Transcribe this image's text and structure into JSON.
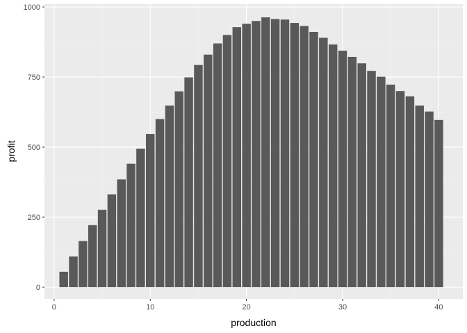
{
  "chart_data": {
    "type": "bar",
    "xlabel": "production",
    "ylabel": "profit",
    "x": [
      1,
      2,
      3,
      4,
      5,
      6,
      7,
      8,
      9,
      10,
      11,
      12,
      13,
      14,
      15,
      16,
      17,
      18,
      19,
      20,
      21,
      22,
      23,
      24,
      25,
      26,
      27,
      28,
      29,
      30,
      31,
      32,
      33,
      34,
      35,
      36,
      37,
      38,
      39,
      40
    ],
    "values": [
      55,
      110,
      165,
      222,
      276,
      331,
      385,
      441,
      494,
      547,
      600,
      648,
      699,
      749,
      793,
      830,
      870,
      900,
      928,
      940,
      950,
      963,
      957,
      955,
      943,
      932,
      911,
      890,
      866,
      844,
      822,
      799,
      772,
      751,
      723,
      700,
      681,
      648,
      627,
      597
    ],
    "xlim": [
      -1,
      42.5
    ],
    "ylim": [
      -42,
      1010
    ],
    "x_ticks": [
      0,
      10,
      20,
      30,
      40
    ],
    "x_tick_labels": [
      "0",
      "10",
      "20",
      "30",
      "40"
    ],
    "y_ticks": [
      0,
      250,
      500,
      750,
      1000
    ],
    "y_tick_labels": [
      "0",
      "250",
      "500",
      "750",
      "1000"
    ],
    "grid": true,
    "colors": {
      "bar": "#595959",
      "panel": "#ebebeb",
      "grid_major": "#ffffff",
      "grid_minor": "#f5f5f5"
    }
  }
}
